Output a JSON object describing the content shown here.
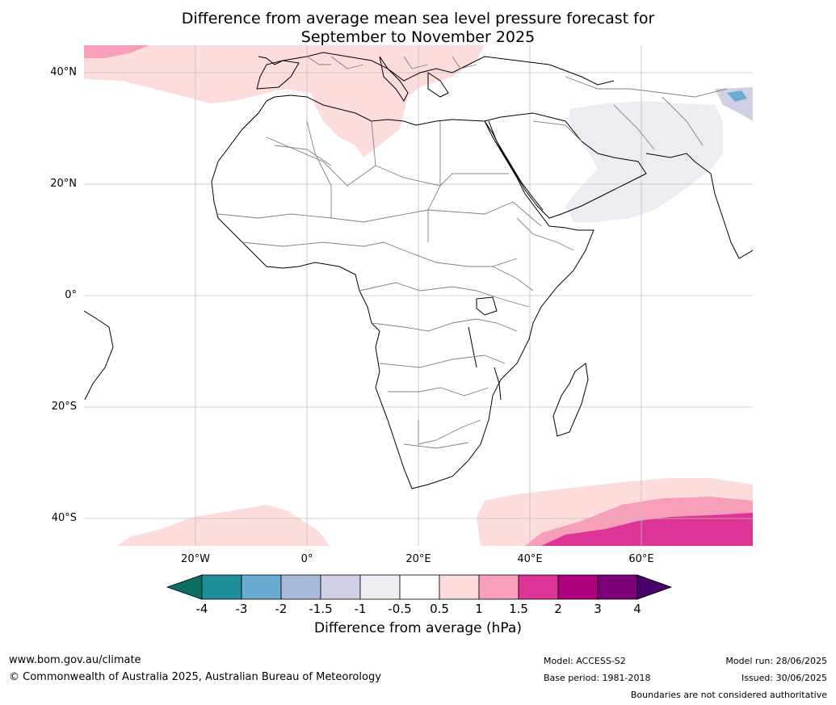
{
  "title_line1": "Difference from average mean sea level pressure forecast for",
  "title_line2": "September to November 2025",
  "lat_labels": [
    "40°N",
    "20°N",
    "0°",
    "20°S",
    "40°S"
  ],
  "lon_labels": [
    "20°W",
    "0°",
    "20°E",
    "40°E",
    "60°E"
  ],
  "colorbar": {
    "tick_labels": [
      "-4",
      "-3",
      "-2",
      "-1.5",
      "-1",
      "-0.5",
      "0.5",
      "1",
      "1.5",
      "2",
      "3",
      "4"
    ],
    "colors": [
      "#0b6e62",
      "#1f9099",
      "#6aabd2",
      "#a8b9d9",
      "#cfd0e4",
      "#efebf2",
      "#ffffff",
      "#fddcdc",
      "#f79fb8",
      "#dd3497",
      "#ae017e",
      "#7a0177",
      "#49006a"
    ],
    "title": "Difference from average (hPa)"
  },
  "footer": {
    "website": "www.bom.gov.au/climate",
    "copyright": "© Commonwealth of Australia 2025, Australian Bureau of Meteorology",
    "model": "Model: ACCESS-S2",
    "base_period": "Base period: 1981-2018",
    "model_run": "Model run: 28/06/2025",
    "issued": "Issued: 30/06/2025",
    "disclaimer": "Boundaries are not considered authoritative"
  }
}
